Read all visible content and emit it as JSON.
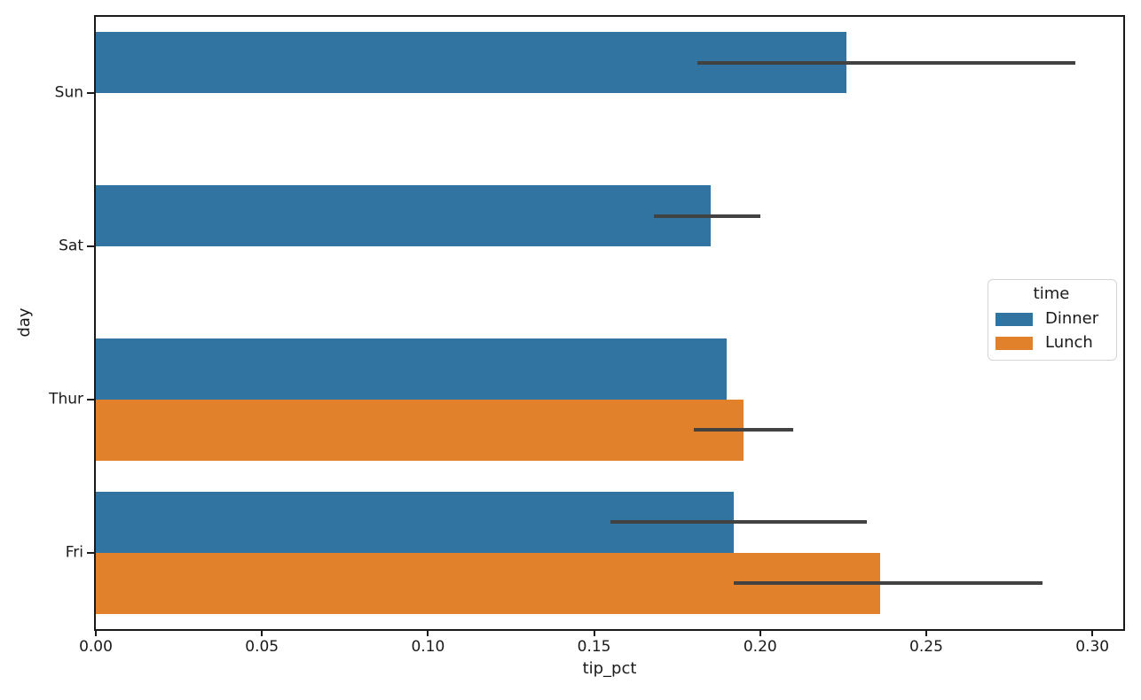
{
  "chart_data": {
    "type": "bar",
    "orientation": "horizontal",
    "title": "",
    "xlabel": "tip_pct",
    "ylabel": "day",
    "categories": [
      "Sun",
      "Sat",
      "Thur",
      "Fri"
    ],
    "series": [
      {
        "name": "Dinner",
        "color": "#3274a1",
        "values": [
          0.226,
          0.185,
          0.19,
          0.192
        ],
        "ci_low": [
          0.181,
          0.168,
          null,
          0.155
        ],
        "ci_high": [
          0.295,
          0.2,
          null,
          0.232
        ]
      },
      {
        "name": "Lunch",
        "color": "#e1812c",
        "values": [
          null,
          null,
          0.195,
          0.236
        ],
        "ci_low": [
          null,
          null,
          0.18,
          0.192
        ],
        "ci_high": [
          null,
          null,
          0.21,
          0.285
        ]
      }
    ],
    "xlim": [
      0,
      0.3093
    ],
    "xticks": [
      0,
      0.05,
      0.1,
      0.15,
      0.2,
      0.25,
      0.3
    ],
    "xtick_labels": [
      "0.00",
      "0.05",
      "0.10",
      "0.15",
      "0.20",
      "0.25",
      "0.30"
    ],
    "legend": {
      "title": "time",
      "entries": [
        "Dinner",
        "Lunch"
      ],
      "position": "center right"
    },
    "error_bar_color": "#424242",
    "grid": false,
    "bar_group_fraction": 0.8
  }
}
